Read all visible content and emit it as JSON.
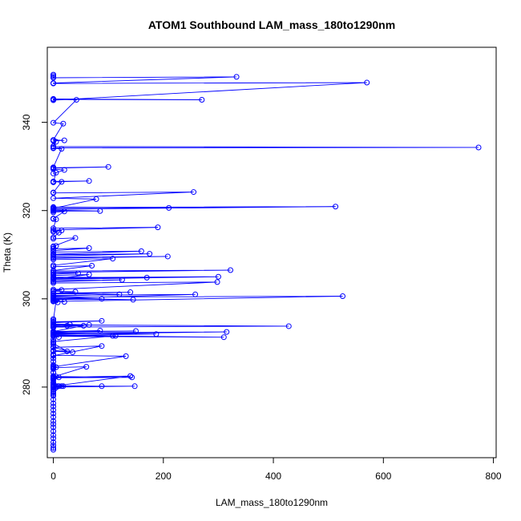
{
  "chart_data": {
    "type": "line",
    "title": "ATOM1 Southbound LAM_mass_180to1290nm",
    "xlabel": "LAM_mass_180to1290nm",
    "ylabel": "Theta (K)",
    "xlim": [
      -11,
      805
    ],
    "ylim": [
      264,
      357
    ],
    "xticks": [
      0,
      200,
      400,
      600,
      800
    ],
    "yticks": [
      280,
      300,
      320,
      340
    ],
    "series_color": "#0000ff",
    "marker": "open-circle",
    "grid": false,
    "legend": "none",
    "series": [
      {
        "x": [
          0,
          0,
          0,
          0,
          0,
          0,
          0,
          0,
          0,
          0,
          0,
          0,
          0,
          0,
          0,
          0,
          0,
          0,
          0,
          0,
          0,
          0,
          0,
          0,
          0,
          0,
          0,
          0,
          0,
          0,
          0,
          0,
          0,
          0,
          0,
          0,
          10,
          0,
          0,
          5,
          0,
          0,
          0,
          0,
          0,
          0,
          0,
          5,
          0,
          0,
          0,
          0,
          0,
          0,
          148,
          0,
          88,
          0,
          8,
          0,
          0,
          18,
          0,
          0,
          15,
          0,
          0,
          5,
          0,
          140,
          0,
          0,
          10,
          0,
          0,
          143,
          0,
          0,
          60,
          0,
          0,
          5,
          0,
          0,
          132,
          0,
          0,
          88,
          0,
          35,
          0,
          0,
          25,
          0,
          0,
          108,
          0,
          10,
          0,
          310,
          0,
          187,
          0,
          0,
          113,
          0,
          0,
          315,
          0,
          0,
          150,
          0,
          0,
          85,
          0,
          55,
          0,
          0,
          25,
          0,
          30,
          0,
          428,
          0,
          0,
          65,
          0,
          0,
          88,
          0,
          0,
          0,
          5,
          0,
          20,
          0,
          8,
          0,
          526,
          0,
          0,
          145,
          0,
          0,
          88,
          0,
          0,
          258,
          0,
          0,
          120,
          0,
          0,
          140,
          0,
          0,
          40,
          0,
          0,
          15,
          0,
          298,
          0,
          0,
          125,
          0,
          0,
          300,
          0,
          0,
          170,
          0,
          0,
          65,
          0,
          0,
          45,
          0,
          0,
          322,
          0,
          0,
          70,
          0,
          0,
          108,
          0,
          0,
          208,
          0,
          0,
          175,
          0,
          0,
          160,
          0,
          0,
          65,
          0,
          0,
          5,
          0,
          0,
          40,
          0,
          0,
          10,
          0,
          15,
          0,
          0,
          190,
          0,
          5,
          0,
          0,
          20,
          0,
          0,
          85,
          0,
          0,
          513,
          0,
          0,
          210,
          0,
          0,
          78,
          0,
          255,
          0,
          0,
          15,
          0,
          65,
          0,
          0,
          5,
          0,
          20,
          0,
          0,
          100,
          0,
          0,
          15,
          0,
          0,
          773,
          0,
          0,
          5,
          0,
          20,
          0,
          18,
          0,
          42,
          0,
          0,
          270,
          0,
          0,
          570,
          0,
          0,
          333,
          0,
          0,
          0,
          0
        ],
        "y": [
          265.8,
          266.2,
          266.8,
          267.5,
          268.4,
          269.1,
          270.0,
          270.9,
          271.6,
          272.3,
          273.2,
          274.0,
          274.8,
          275.6,
          276.3,
          277.2,
          278.0,
          278.8,
          279.5,
          280.2,
          281.0,
          281.8,
          282.5,
          283.3,
          284.1,
          285.0,
          285.8,
          286.5,
          287.4,
          288.2,
          289.0,
          289.6,
          290.2,
          290.8,
          283.3,
          278.2,
          280.2,
          280.2,
          279.8,
          282.4,
          281.0,
          280.0,
          278.5,
          279.2,
          281.6,
          280.6,
          280.2,
          279.9,
          280.4,
          280.1,
          280.2,
          280.1,
          280.3,
          280.2,
          280.2,
          280.0,
          280.2,
          280.3,
          280.2,
          280.1,
          280.2,
          280.2,
          280.0,
          280.2,
          280.2,
          280.1,
          280.2,
          280.2,
          280.2,
          282.5,
          282.2,
          281.9,
          282.2,
          282.0,
          282.4,
          282.2,
          282.1,
          282.3,
          284.6,
          284.4,
          284.7,
          284.5,
          284.3,
          284.6,
          287.0,
          287.2,
          287.1,
          289.3,
          289.0,
          287.9,
          288.1,
          289.9,
          288.1,
          288.3,
          290.3,
          291.6,
          291.8,
          291.3,
          291.5,
          291.3,
          291.7,
          292.0,
          292.2,
          291.9,
          291.6,
          291.8,
          292.0,
          292.5,
          292.3,
          292.6,
          292.7,
          292.5,
          292.4,
          292.8,
          292.6,
          293.9,
          293.7,
          293.5,
          293.9,
          294.0,
          294.2,
          294.1,
          293.8,
          293.6,
          293.9,
          294.1,
          294.3,
          294.6,
          295.0,
          294.8,
          295.4,
          295.1,
          299.6,
          299.7,
          299.3,
          299.5,
          299.2,
          299.4,
          300.6,
          300.4,
          300.2,
          299.8,
          300.0,
          300.2,
          300.0,
          299.8,
          300.1,
          301.0,
          300.8,
          300.6,
          301.0,
          301.2,
          301.1,
          301.5,
          301.3,
          301.2,
          301.6,
          301.7,
          301.8,
          302.0,
          302.1,
          303.8,
          303.6,
          303.9,
          304.3,
          304.1,
          304.4,
          305.0,
          304.8,
          304.9,
          304.8,
          304.6,
          304.5,
          305.5,
          305.3,
          305.6,
          305.8,
          305.9,
          306.0,
          306.5,
          306.3,
          306.4,
          307.5,
          307.3,
          307.6,
          309.1,
          308.9,
          309.2,
          309.6,
          309.4,
          309.7,
          310.2,
          310.0,
          310.1,
          310.8,
          310.6,
          310.9,
          311.5,
          311.3,
          311.4,
          312.0,
          311.8,
          311.9,
          313.8,
          313.6,
          313.9,
          315.0,
          315.2,
          315.5,
          315.3,
          315.6,
          316.2,
          316.0,
          318.0,
          318.1,
          318.2,
          319.8,
          319.6,
          319.9,
          319.9,
          320.1,
          320.3,
          320.9,
          320.7,
          320.8,
          320.6,
          320.4,
          320.5,
          322.6,
          322.8,
          324.2,
          324.0,
          324.1,
          326.5,
          326.6,
          326.7,
          326.5,
          326.4,
          328.6,
          328.4,
          329.2,
          329.4,
          329.6,
          329.9,
          329.7,
          329.8,
          334.0,
          334.1,
          334.2,
          334.3,
          334.5,
          334.6,
          335.6,
          335.8,
          335.9,
          336.0,
          339.7,
          339.9,
          345.1,
          345.2,
          345.3,
          345.1,
          345.2,
          345.0,
          349.0,
          348.8,
          348.9,
          350.3,
          350.1,
          350.2,
          350.5,
          350.8
        ]
      }
    ]
  }
}
